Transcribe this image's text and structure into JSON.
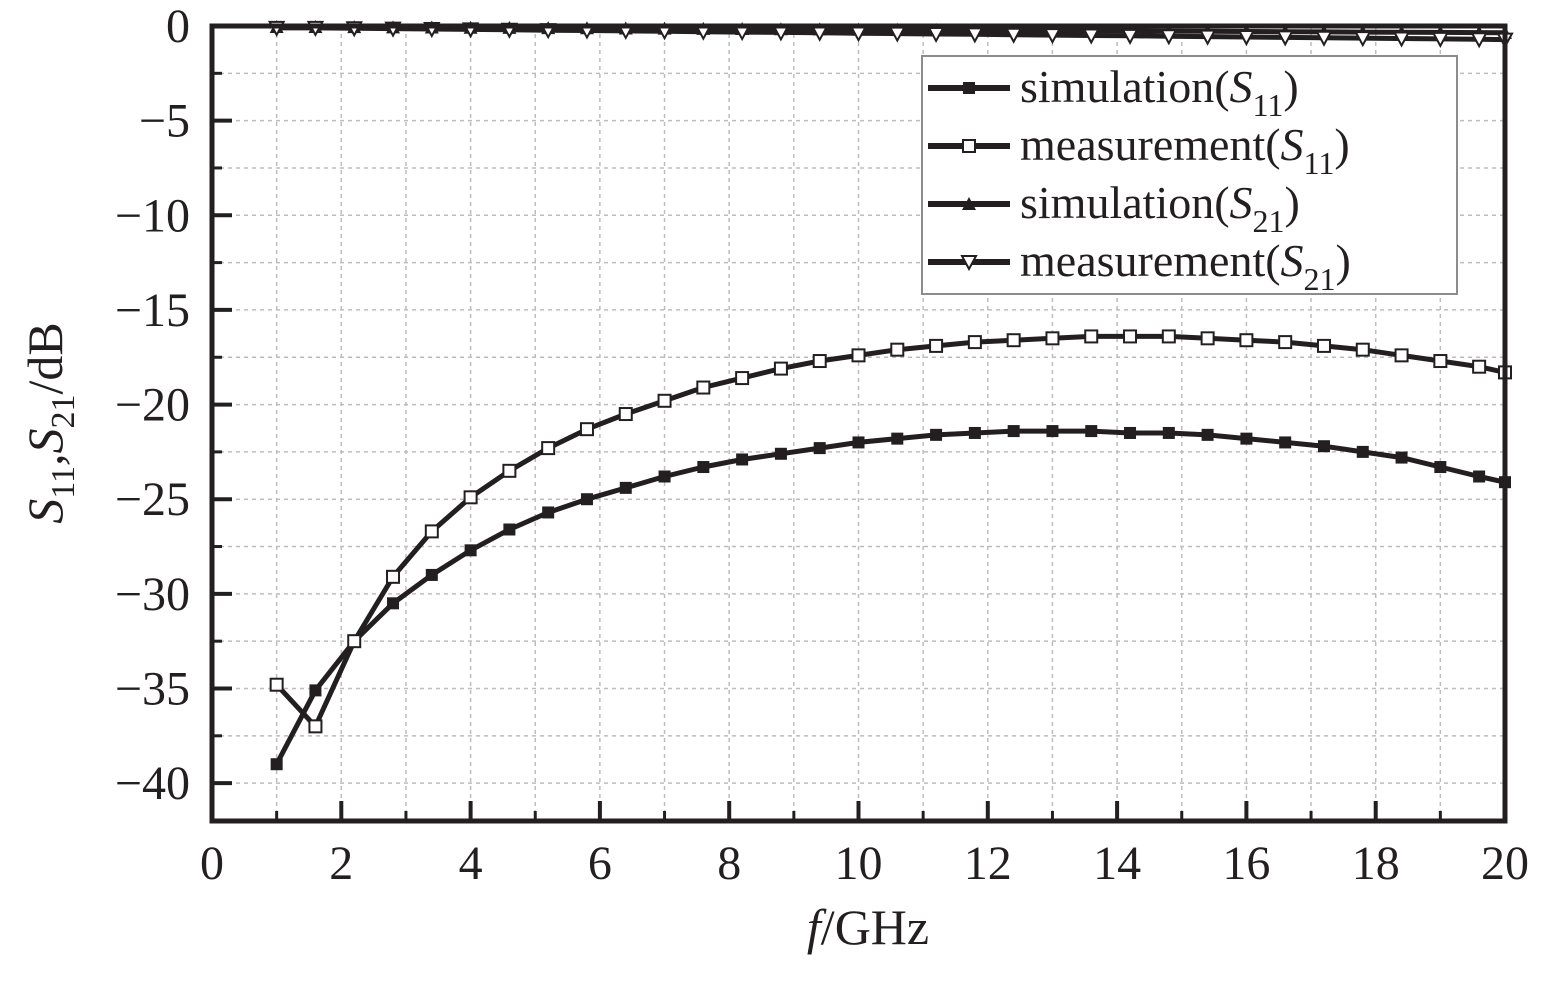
{
  "chart_data": {
    "type": "line",
    "xlabel": {
      "italic": "f",
      "rest": "/GHz"
    },
    "ylabel": {
      "p1": "S",
      "s1": "11",
      "p2": ",S",
      "s2": "21",
      "p3": "/dB"
    },
    "xlim": [
      0,
      20
    ],
    "ylim": [
      -42,
      0
    ],
    "x_ticks": [
      0,
      2,
      4,
      6,
      8,
      10,
      12,
      14,
      16,
      18,
      20
    ],
    "y_ticks": [
      0,
      -5,
      -10,
      -15,
      -20,
      -25,
      -30,
      -35,
      -40
    ],
    "y_tick_labels": [
      "0",
      "−5",
      "−10",
      "−15",
      "−20",
      "−25",
      "−30",
      "−35",
      "−40"
    ],
    "grid": true,
    "legend_position": "top-right",
    "colors": {
      "line": "#231f20",
      "grid": "#bdbdbd",
      "background": "#ffffff"
    },
    "series": [
      {
        "name": "simulation(S11)",
        "legend": {
          "base": "simulation(",
          "italic": "S",
          "sub": "11",
          "close": ")"
        },
        "marker": "filled-square",
        "x": [
          1.0,
          1.6,
          2.2,
          2.8,
          3.4,
          4.0,
          4.6,
          5.2,
          5.8,
          6.4,
          7.0,
          7.6,
          8.2,
          8.8,
          9.4,
          10.0,
          10.6,
          11.2,
          11.8,
          12.4,
          13.0,
          13.6,
          14.2,
          14.8,
          15.4,
          16.0,
          16.6,
          17.2,
          17.8,
          18.4,
          19.0,
          19.6,
          20.0
        ],
        "y": [
          -39.0,
          -35.1,
          -32.5,
          -30.5,
          -29.0,
          -27.7,
          -26.6,
          -25.7,
          -25.0,
          -24.4,
          -23.8,
          -23.3,
          -22.9,
          -22.6,
          -22.3,
          -22.0,
          -21.8,
          -21.6,
          -21.5,
          -21.4,
          -21.4,
          -21.4,
          -21.5,
          -21.5,
          -21.6,
          -21.8,
          -22.0,
          -22.2,
          -22.5,
          -22.8,
          -23.3,
          -23.8,
          -24.1
        ]
      },
      {
        "name": "measurement(S11)",
        "legend": {
          "base": "measurement(",
          "italic": "S",
          "sub": "11",
          "close": ")"
        },
        "marker": "open-square",
        "x": [
          1.0,
          1.6,
          2.2,
          2.8,
          3.4,
          4.0,
          4.6,
          5.2,
          5.8,
          6.4,
          7.0,
          7.6,
          8.2,
          8.8,
          9.4,
          10.0,
          10.6,
          11.2,
          11.8,
          12.4,
          13.0,
          13.6,
          14.2,
          14.8,
          15.4,
          16.0,
          16.6,
          17.2,
          17.8,
          18.4,
          19.0,
          19.6,
          20.0
        ],
        "y": [
          -34.8,
          -37.0,
          -32.5,
          -29.1,
          -26.7,
          -24.9,
          -23.5,
          -22.3,
          -21.3,
          -20.5,
          -19.8,
          -19.1,
          -18.6,
          -18.1,
          -17.7,
          -17.4,
          -17.1,
          -16.9,
          -16.7,
          -16.6,
          -16.5,
          -16.4,
          -16.4,
          -16.4,
          -16.5,
          -16.6,
          -16.7,
          -16.9,
          -17.1,
          -17.4,
          -17.7,
          -18.0,
          -18.3
        ]
      },
      {
        "name": "simulation(S21)",
        "legend": {
          "base": "simulation(",
          "italic": "S",
          "sub": "21",
          "close": ")"
        },
        "marker": "filled-triangle-up",
        "x": [
          1.0,
          1.6,
          2.2,
          2.8,
          3.4,
          4.0,
          4.6,
          5.2,
          5.8,
          6.4,
          7.0,
          7.6,
          8.2,
          8.8,
          9.4,
          10.0,
          10.6,
          11.2,
          11.8,
          12.4,
          13.0,
          13.6,
          14.2,
          14.8,
          15.4,
          16.0,
          16.6,
          17.2,
          17.8,
          18.4,
          19.0,
          19.6,
          20.0
        ],
        "y": [
          -0.05,
          -0.05,
          -0.06,
          -0.07,
          -0.08,
          -0.09,
          -0.1,
          -0.11,
          -0.12,
          -0.13,
          -0.14,
          -0.15,
          -0.16,
          -0.17,
          -0.18,
          -0.19,
          -0.2,
          -0.21,
          -0.22,
          -0.23,
          -0.24,
          -0.25,
          -0.26,
          -0.27,
          -0.28,
          -0.29,
          -0.3,
          -0.31,
          -0.32,
          -0.33,
          -0.34,
          -0.35,
          -0.36
        ]
      },
      {
        "name": "measurement(S21)",
        "legend": {
          "base": "measurement(",
          "italic": "S",
          "sub": "21",
          "close": ")"
        },
        "marker": "open-triangle-down",
        "x": [
          1.0,
          1.6,
          2.2,
          2.8,
          3.4,
          4.0,
          4.6,
          5.2,
          5.8,
          6.4,
          7.0,
          7.6,
          8.2,
          8.8,
          9.4,
          10.0,
          10.6,
          11.2,
          11.8,
          12.4,
          13.0,
          13.6,
          14.2,
          14.8,
          15.4,
          16.0,
          16.6,
          17.2,
          17.8,
          18.4,
          19.0,
          19.6,
          20.0
        ],
        "y": [
          -0.1,
          -0.1,
          -0.12,
          -0.14,
          -0.16,
          -0.18,
          -0.2,
          -0.22,
          -0.24,
          -0.26,
          -0.28,
          -0.3,
          -0.32,
          -0.34,
          -0.36,
          -0.38,
          -0.4,
          -0.42,
          -0.44,
          -0.46,
          -0.48,
          -0.5,
          -0.52,
          -0.54,
          -0.56,
          -0.58,
          -0.6,
          -0.62,
          -0.64,
          -0.66,
          -0.68,
          -0.7,
          -0.72
        ]
      }
    ]
  }
}
